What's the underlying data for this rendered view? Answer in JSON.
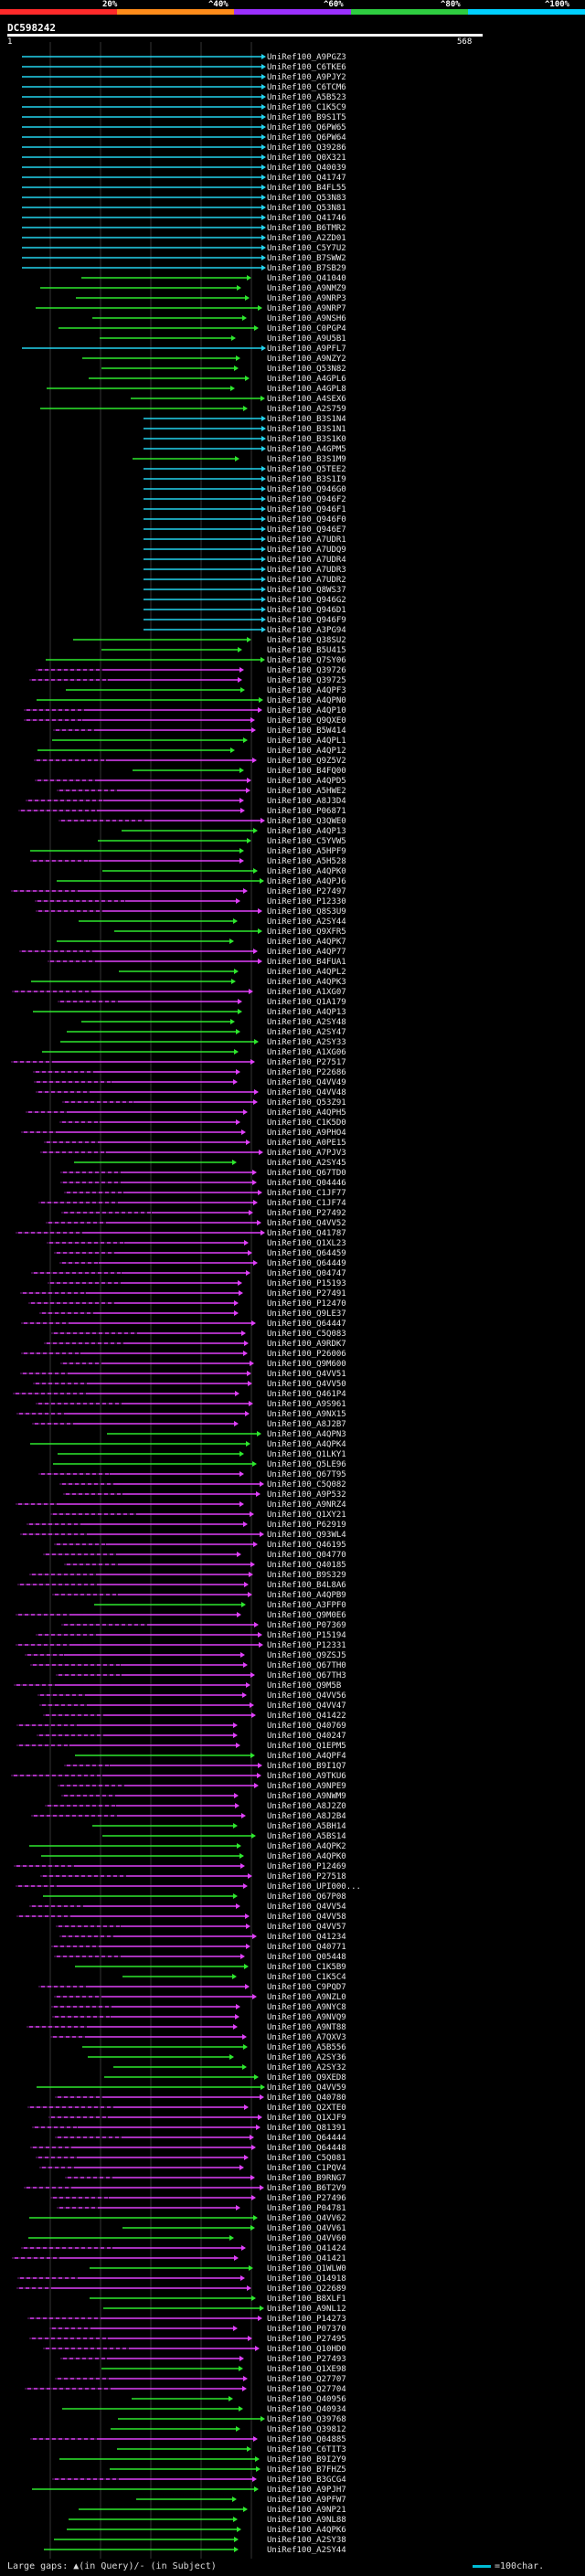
{
  "scale": {
    "labels": [
      "20%",
      "^40%",
      "^60%",
      "^80%",
      "^100%"
    ],
    "colors": [
      "#ff2a2a",
      "#ff8c1a",
      "#9b30ff",
      "#2ecc40",
      "#00d0ff"
    ]
  },
  "query": {
    "name": "DC598242",
    "start": "1",
    "end": "568"
  },
  "legend": {
    "gaps": "Large gaps: ▲(in Query)/- (in Subject)",
    "scale": "=100char."
  },
  "colors": {
    "cyan": "#22d3ee",
    "green": "#2ee82e",
    "magenta": "#e040fb"
  },
  "hits": [
    {
      "id": "UniRef100_A9PGZ3",
      "c": "c"
    },
    {
      "id": "UniRef100_C6TKE6",
      "c": "c"
    },
    {
      "id": "UniRef100_A9PJY2",
      "c": "c"
    },
    {
      "id": "UniRef100_C6TCM6",
      "c": "c"
    },
    {
      "id": "UniRef100_A5B523",
      "c": "c"
    },
    {
      "id": "UniRef100_C1K5C9",
      "c": "c"
    },
    {
      "id": "UniRef100_B9S1T5",
      "c": "c"
    },
    {
      "id": "UniRef100_Q6PW65",
      "c": "c"
    },
    {
      "id": "UniRef100_Q6PW64",
      "c": "c"
    },
    {
      "id": "UniRef100_Q39286",
      "c": "c"
    },
    {
      "id": "UniRef100_Q0X321",
      "c": "c"
    },
    {
      "id": "UniRef100_Q40039",
      "c": "c"
    },
    {
      "id": "UniRef100_Q41747",
      "c": "c"
    },
    {
      "id": "UniRef100_B4FL55",
      "c": "c"
    },
    {
      "id": "UniRef100_Q53N83",
      "c": "c"
    },
    {
      "id": "UniRef100_Q53N81",
      "c": "c"
    },
    {
      "id": "UniRef100_Q41746",
      "c": "c"
    },
    {
      "id": "UniRef100_B6TMR2",
      "c": "c"
    },
    {
      "id": "UniRef100_A2ZD01",
      "c": "c"
    },
    {
      "id": "UniRef100_C5Y7U2",
      "c": "c"
    },
    {
      "id": "UniRef100_B7SWW2",
      "c": "c"
    },
    {
      "id": "UniRef100_B7SB29",
      "c": "c"
    },
    {
      "id": "UniRef100_Q41040",
      "c": "g"
    },
    {
      "id": "UniRef100_A9NMZ9",
      "c": "g"
    },
    {
      "id": "UniRef100_A9NRP3",
      "c": "g"
    },
    {
      "id": "UniRef100_A9NRP7",
      "c": "g"
    },
    {
      "id": "UniRef100_A9NSH6",
      "c": "g"
    },
    {
      "id": "UniRef100_C0PGP4",
      "c": "g"
    },
    {
      "id": "UniRef100_A9U5B1",
      "c": "g"
    },
    {
      "id": "UniRef100_A9PFL7",
      "c": "c"
    },
    {
      "id": "UniRef100_A9NZY2",
      "c": "g"
    },
    {
      "id": "UniRef100_Q53N82",
      "c": "g"
    },
    {
      "id": "UniRef100_A4GPL6",
      "c": "g"
    },
    {
      "id": "UniRef100_A4GPL8",
      "c": "g"
    },
    {
      "id": "UniRef100_A4SEX6",
      "c": "g"
    },
    {
      "id": "UniRef100_A2S759",
      "c": "g"
    },
    {
      "id": "UniRef100_B3S1N4",
      "c": "c"
    },
    {
      "id": "UniRef100_B3S1N1",
      "c": "c"
    },
    {
      "id": "UniRef100_B3S1K0",
      "c": "c"
    },
    {
      "id": "UniRef100_A4GPM5",
      "c": "c"
    },
    {
      "id": "UniRef100_B3S1M9",
      "c": "g"
    },
    {
      "id": "UniRef100_Q5TEE2",
      "c": "c"
    },
    {
      "id": "UniRef100_B3S1I9",
      "c": "c"
    },
    {
      "id": "UniRef100_Q946G0",
      "c": "c"
    },
    {
      "id": "UniRef100_Q946F2",
      "c": "c"
    },
    {
      "id": "UniRef100_Q946F1",
      "c": "c"
    },
    {
      "id": "UniRef100_Q946F0",
      "c": "c"
    },
    {
      "id": "UniRef100_Q946E7",
      "c": "c"
    },
    {
      "id": "UniRef100_A7UDR1",
      "c": "c"
    },
    {
      "id": "UniRef100_A7UDQ9",
      "c": "c"
    },
    {
      "id": "UniRef100_A7UDR4",
      "c": "c"
    },
    {
      "id": "UniRef100_A7UDR3",
      "c": "c"
    },
    {
      "id": "UniRef100_A7UDR2",
      "c": "c"
    },
    {
      "id": "UniRef100_Q8WS37",
      "c": "c"
    },
    {
      "id": "UniRef100_Q946G2",
      "c": "c"
    },
    {
      "id": "UniRef100_Q946D1",
      "c": "c"
    },
    {
      "id": "UniRef100_Q946F9",
      "c": "c"
    },
    {
      "id": "UniRef100_A3PG94",
      "c": "c"
    },
    {
      "id": "UniRef100_Q38SU2",
      "c": "g"
    },
    {
      "id": "UniRef100_B5U415",
      "c": "g"
    },
    {
      "id": "UniRef100_Q7SY06",
      "c": "g"
    },
    {
      "id": "UniRef100_Q39726",
      "c": "m"
    },
    {
      "id": "UniRef100_Q39725",
      "c": "m"
    },
    {
      "id": "UniRef100_A4QPF3",
      "c": "g"
    },
    {
      "id": "UniRef100_A4QPN0",
      "c": "g"
    },
    {
      "id": "UniRef100_A4QP10",
      "c": "m"
    },
    {
      "id": "UniRef100_Q9QXE0",
      "c": "m"
    },
    {
      "id": "UniRef100_B5W414",
      "c": "m"
    },
    {
      "id": "UniRef100_A4QPL1",
      "c": "g"
    },
    {
      "id": "UniRef100_A4QP12",
      "c": "g"
    },
    {
      "id": "UniRef100_Q9Z5V2",
      "c": "m"
    },
    {
      "id": "UniRef100_B4FQ00",
      "c": "g"
    },
    {
      "id": "UniRef100_A4QPD5",
      "c": "m"
    },
    {
      "id": "UniRef100_A5HWE2",
      "c": "m"
    },
    {
      "id": "UniRef100_A8J3D4",
      "c": "m"
    },
    {
      "id": "UniRef100_P06871",
      "c": "m"
    },
    {
      "id": "UniRef100_Q3QWE0",
      "c": "m"
    },
    {
      "id": "UniRef100_A4QP13",
      "c": "g"
    },
    {
      "id": "UniRef100_C5YVW5",
      "c": "g"
    },
    {
      "id": "UniRef100_A5HPF9",
      "c": "g"
    },
    {
      "id": "UniRef100_A5H528",
      "c": "m"
    },
    {
      "id": "UniRef100_A4QPK0",
      "c": "g"
    },
    {
      "id": "UniRef100_A4QPJ6",
      "c": "g"
    },
    {
      "id": "UniRef100_P27497",
      "c": "m"
    },
    {
      "id": "UniRef100_P12330",
      "c": "m"
    },
    {
      "id": "UniRef100_Q8S3U9",
      "c": "m"
    },
    {
      "id": "UniRef100_A2SY44",
      "c": "g"
    },
    {
      "id": "UniRef100_Q9XFR5",
      "c": "g"
    },
    {
      "id": "UniRef100_A4QPK7",
      "c": "g"
    },
    {
      "id": "UniRef100_A4QP77",
      "c": "m"
    },
    {
      "id": "UniRef100_B4FUA1",
      "c": "m"
    },
    {
      "id": "UniRef100_A4QPL2",
      "c": "g"
    },
    {
      "id": "UniRef100_A4QPK3",
      "c": "g"
    },
    {
      "id": "UniRef100_A1XG07",
      "c": "m"
    },
    {
      "id": "UniRef100_Q1A179",
      "c": "m"
    },
    {
      "id": "UniRef100_A4QP13",
      "c": "g"
    },
    {
      "id": "UniRef100_A2SY48",
      "c": "g"
    },
    {
      "id": "UniRef100_A2SY47",
      "c": "g"
    },
    {
      "id": "UniRef100_A2SY33",
      "c": "g"
    },
    {
      "id": "UniRef100_A1XG06",
      "c": "g"
    },
    {
      "id": "UniRef100_P27517",
      "c": "m"
    },
    {
      "id": "UniRef100_P22686",
      "c": "m"
    },
    {
      "id": "UniRef100_Q4VV49",
      "c": "m"
    },
    {
      "id": "UniRef100_Q4VV48",
      "c": "m"
    },
    {
      "id": "UniRef100_Q53Z91",
      "c": "m"
    },
    {
      "id": "UniRef100_A4QPH5",
      "c": "m"
    },
    {
      "id": "UniRef100_C1K5D0",
      "c": "m"
    },
    {
      "id": "UniRef100_A9PHO4",
      "c": "m"
    },
    {
      "id": "UniRef100_A0PE15",
      "c": "m"
    },
    {
      "id": "UniRef100_A7PJV3",
      "c": "m"
    },
    {
      "id": "UniRef100_A2SY45",
      "c": "g"
    },
    {
      "id": "UniRef100_Q67TD0",
      "c": "m"
    },
    {
      "id": "UniRef100_Q04446",
      "c": "m"
    },
    {
      "id": "UniRef100_C1JF77",
      "c": "m"
    },
    {
      "id": "UniRef100_C1JF74",
      "c": "m"
    },
    {
      "id": "UniRef100_P27492",
      "c": "m"
    },
    {
      "id": "UniRef100_Q4VV52",
      "c": "m"
    },
    {
      "id": "UniRef100_Q41787",
      "c": "m"
    },
    {
      "id": "UniRef100_Q1XL23",
      "c": "m"
    },
    {
      "id": "UniRef100_Q64459",
      "c": "m"
    },
    {
      "id": "UniRef100_Q64449",
      "c": "m"
    },
    {
      "id": "UniRef100_Q04747",
      "c": "m"
    },
    {
      "id": "UniRef100_P15193",
      "c": "m"
    },
    {
      "id": "UniRef100_P27491",
      "c": "m"
    },
    {
      "id": "UniRef100_P12470",
      "c": "m"
    },
    {
      "id": "UniRef100_Q9LE37",
      "c": "m"
    },
    {
      "id": "UniRef100_Q64447",
      "c": "m"
    },
    {
      "id": "UniRef100_C5Q083",
      "c": "m"
    },
    {
      "id": "UniRef100_A9RDK7",
      "c": "m"
    },
    {
      "id": "UniRef100_P26006",
      "c": "m"
    },
    {
      "id": "UniRef100_Q9M600",
      "c": "m"
    },
    {
      "id": "UniRef100_Q4VV51",
      "c": "m"
    },
    {
      "id": "UniRef100_Q4VV50",
      "c": "m"
    },
    {
      "id": "UniRef100_Q461P4",
      "c": "m"
    },
    {
      "id": "UniRef100_A9S961",
      "c": "m"
    },
    {
      "id": "UniRef100_A9NX15",
      "c": "m"
    },
    {
      "id": "UniRef100_A8J2B7",
      "c": "m"
    },
    {
      "id": "UniRef100_A4QPN3",
      "c": "g"
    },
    {
      "id": "UniRef100_A4QPK4",
      "c": "g"
    },
    {
      "id": "UniRef100_Q1LKY1",
      "c": "g"
    },
    {
      "id": "UniRef100_Q5LE96",
      "c": "g"
    },
    {
      "id": "UniRef100_Q67T95",
      "c": "m"
    },
    {
      "id": "UniRef100_C5Q082",
      "c": "m"
    },
    {
      "id": "UniRef100_A9P532",
      "c": "m"
    },
    {
      "id": "UniRef100_A9NRZ4",
      "c": "m"
    },
    {
      "id": "UniRef100_Q1XY21",
      "c": "m"
    },
    {
      "id": "UniRef100_P62919",
      "c": "m"
    },
    {
      "id": "UniRef100_Q93WL4",
      "c": "m"
    },
    {
      "id": "UniRef100_Q46195",
      "c": "m"
    },
    {
      "id": "UniRef100_Q04770",
      "c": "m"
    },
    {
      "id": "UniRef100_Q40185",
      "c": "m"
    },
    {
      "id": "UniRef100_B9S329",
      "c": "m"
    },
    {
      "id": "UniRef100_B4L8A6",
      "c": "m"
    },
    {
      "id": "UniRef100_A4QPB9",
      "c": "m"
    },
    {
      "id": "UniRef100_A3FPF0",
      "c": "g"
    },
    {
      "id": "UniRef100_Q9M0E6",
      "c": "m"
    },
    {
      "id": "UniRef100_P07369",
      "c": "m"
    },
    {
      "id": "UniRef100_P15194",
      "c": "m"
    },
    {
      "id": "UniRef100_P12331",
      "c": "m"
    },
    {
      "id": "UniRef100_Q9ZSJ5",
      "c": "m"
    },
    {
      "id": "UniRef100_Q67TH0",
      "c": "m"
    },
    {
      "id": "UniRef100_Q67TH3",
      "c": "m"
    },
    {
      "id": "UniRef100_Q9M5B",
      "c": "m"
    },
    {
      "id": "UniRef100_Q4VV56",
      "c": "m"
    },
    {
      "id": "UniRef100_Q4VV47",
      "c": "m"
    },
    {
      "id": "UniRef100_Q41422",
      "c": "m"
    },
    {
      "id": "UniRef100_Q40769",
      "c": "m"
    },
    {
      "id": "UniRef100_Q40247",
      "c": "m"
    },
    {
      "id": "UniRef100_Q1EPM5",
      "c": "m"
    },
    {
      "id": "UniRef100_A4QPF4",
      "c": "g"
    },
    {
      "id": "UniRef100_B9I1Q7",
      "c": "m"
    },
    {
      "id": "UniRef100_A9TKU6",
      "c": "m"
    },
    {
      "id": "UniRef100_A9NPE9",
      "c": "m"
    },
    {
      "id": "UniRef100_A9NWM9",
      "c": "m"
    },
    {
      "id": "UniRef100_A8J2Z0",
      "c": "m"
    },
    {
      "id": "UniRef100_A8J2B4",
      "c": "m"
    },
    {
      "id": "UniRef100_A5BH14",
      "c": "g"
    },
    {
      "id": "UniRef100_A5BS14",
      "c": "g"
    },
    {
      "id": "UniRef100_A4QPK2",
      "c": "g"
    },
    {
      "id": "UniRef100_A4QPK0",
      "c": "g"
    },
    {
      "id": "UniRef100_P12469",
      "c": "m"
    },
    {
      "id": "UniRef100_P27518",
      "c": "m"
    },
    {
      "id": "UniRef100_UPI000...",
      "c": "m"
    },
    {
      "id": "UniRef100_Q67P08",
      "c": "g"
    },
    {
      "id": "UniRef100_Q4VV54",
      "c": "m"
    },
    {
      "id": "UniRef100_Q4VV58",
      "c": "m"
    },
    {
      "id": "UniRef100_Q4VV57",
      "c": "m"
    },
    {
      "id": "UniRef100_Q41234",
      "c": "m"
    },
    {
      "id": "UniRef100_Q40771",
      "c": "m"
    },
    {
      "id": "UniRef100_Q05448",
      "c": "m"
    },
    {
      "id": "UniRef100_C1K5B9",
      "c": "g"
    },
    {
      "id": "UniRef100_C1K5C4",
      "c": "g"
    },
    {
      "id": "UniRef100_C9PQD7",
      "c": "m"
    },
    {
      "id": "UniRef100_A9NZL0",
      "c": "m"
    },
    {
      "id": "UniRef100_A9NYC8",
      "c": "m"
    },
    {
      "id": "UniRef100_A9NVQ9",
      "c": "m"
    },
    {
      "id": "UniRef100_A9NT88",
      "c": "m"
    },
    {
      "id": "UniRef100_A7QXV3",
      "c": "m"
    },
    {
      "id": "UniRef100_A5B556",
      "c": "g"
    },
    {
      "id": "UniRef100_A2SY36",
      "c": "g"
    },
    {
      "id": "UniRef100_A2SY32",
      "c": "g"
    },
    {
      "id": "UniRef100_Q9XED8",
      "c": "g"
    },
    {
      "id": "UniRef100_Q4VV59",
      "c": "g"
    },
    {
      "id": "UniRef100_Q40780",
      "c": "m"
    },
    {
      "id": "UniRef100_Q2XTE0",
      "c": "m"
    },
    {
      "id": "UniRef100_Q1XJF9",
      "c": "m"
    },
    {
      "id": "UniRef100_Q81391",
      "c": "m"
    },
    {
      "id": "UniRef100_Q64444",
      "c": "m"
    },
    {
      "id": "UniRef100_Q64448",
      "c": "m"
    },
    {
      "id": "UniRef100_C5Q081",
      "c": "m"
    },
    {
      "id": "UniRef100_C1PQV4",
      "c": "m"
    },
    {
      "id": "UniRef100_B9RNG7",
      "c": "m"
    },
    {
      "id": "UniRef100_B6T2V9",
      "c": "m"
    },
    {
      "id": "UniRef100_P27496",
      "c": "m"
    },
    {
      "id": "UniRef100_P04781",
      "c": "m"
    },
    {
      "id": "UniRef100_Q4VV62",
      "c": "g"
    },
    {
      "id": "UniRef100_Q4VV61",
      "c": "g"
    },
    {
      "id": "UniRef100_Q4VV60",
      "c": "g"
    },
    {
      "id": "UniRef100_Q41424",
      "c": "m"
    },
    {
      "id": "UniRef100_Q41421",
      "c": "m"
    },
    {
      "id": "UniRef100_Q1WLW0",
      "c": "g"
    },
    {
      "id": "UniRef100_Q14918",
      "c": "m"
    },
    {
      "id": "UniRef100_Q22689",
      "c": "m"
    },
    {
      "id": "UniRef100_B8XLF1",
      "c": "g"
    },
    {
      "id": "UniRef100_A9NL12",
      "c": "g"
    },
    {
      "id": "UniRef100_P14273",
      "c": "m"
    },
    {
      "id": "UniRef100_P07370",
      "c": "m"
    },
    {
      "id": "UniRef100_P27495",
      "c": "m"
    },
    {
      "id": "UniRef100_Q10HD0",
      "c": "m"
    },
    {
      "id": "UniRef100_P27493",
      "c": "m"
    },
    {
      "id": "UniRef100_Q1XE98",
      "c": "g"
    },
    {
      "id": "UniRef100_Q27707",
      "c": "m"
    },
    {
      "id": "UniRef100_Q27704",
      "c": "m"
    },
    {
      "id": "UniRef100_Q40956",
      "c": "g"
    },
    {
      "id": "UniRef100_Q40934",
      "c": "g"
    },
    {
      "id": "UniRef100_Q39768",
      "c": "g"
    },
    {
      "id": "UniRef100_Q39812",
      "c": "g"
    },
    {
      "id": "UniRef100_Q04885",
      "c": "m"
    },
    {
      "id": "UniRef100_C6TIT3",
      "c": "g"
    },
    {
      "id": "UniRef100_B9I2Y9",
      "c": "g"
    },
    {
      "id": "UniRef100_B7FHZ5",
      "c": "g"
    },
    {
      "id": "UniRef100_B3GCG4",
      "c": "m"
    },
    {
      "id": "UniRef100_A9PJH7",
      "c": "g"
    },
    {
      "id": "UniRef100_A9PFW7",
      "c": "g"
    },
    {
      "id": "UniRef100_A9NP21",
      "c": "g"
    },
    {
      "id": "UniRef100_A9NL88",
      "c": "g"
    },
    {
      "id": "UniRef100_A4QPK6",
      "c": "g"
    },
    {
      "id": "UniRef100_A2SY38",
      "c": "g"
    },
    {
      "id": "UniRef100_A2SY44",
      "c": "g"
    }
  ]
}
